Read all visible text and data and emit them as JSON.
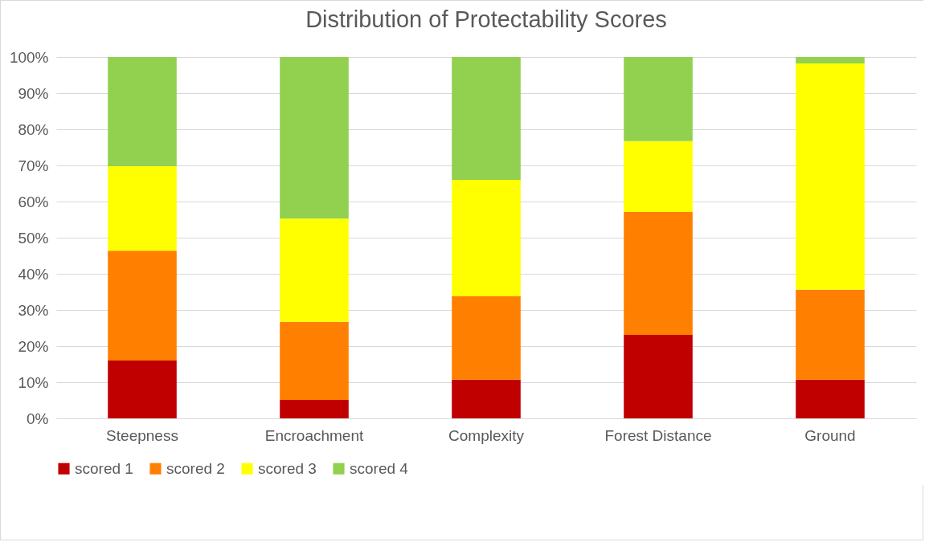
{
  "chart_data": {
    "type": "bar",
    "title": "Distribution of Protectability Scores",
    "stacked": true,
    "categories": [
      "Steepness",
      "Encroachment",
      "Complexity",
      "Forest Distance",
      "Ground"
    ],
    "series": [
      {
        "name": "scored 1",
        "color": "#c00000",
        "values": [
          16.0,
          5.1,
          10.7,
          23.1,
          10.7
        ]
      },
      {
        "name": "scored 2",
        "color": "#ff8000",
        "values": [
          30.4,
          21.6,
          23.1,
          34.0,
          24.9
        ]
      },
      {
        "name": "scored 3",
        "color": "#ffff00",
        "values": [
          23.4,
          28.6,
          32.2,
          19.6,
          62.6
        ]
      },
      {
        "name": "scored 4",
        "color": "#92d050",
        "values": [
          30.2,
          44.7,
          34.0,
          23.3,
          1.8
        ]
      }
    ],
    "ylim": [
      0,
      100
    ],
    "yticks": [
      {
        "value": 0,
        "label": "0%"
      },
      {
        "value": 10,
        "label": "10%"
      },
      {
        "value": 20,
        "label": "20%"
      },
      {
        "value": 30,
        "label": "30%"
      },
      {
        "value": 40,
        "label": "40%"
      },
      {
        "value": 50,
        "label": "50%"
      },
      {
        "value": 60,
        "label": "60%"
      },
      {
        "value": 70,
        "label": "70%"
      },
      {
        "value": 80,
        "label": "80%"
      },
      {
        "value": 90,
        "label": "90%"
      },
      {
        "value": 100,
        "label": "100%"
      }
    ],
    "grid": "y",
    "legend": "bottom"
  }
}
